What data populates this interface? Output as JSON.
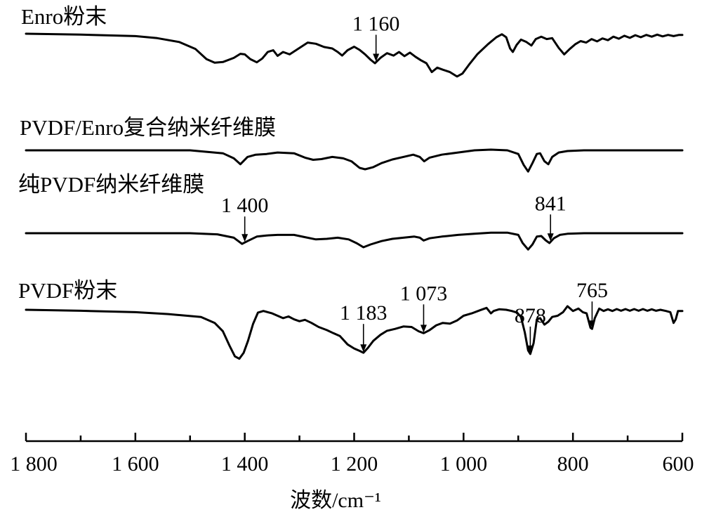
{
  "chart_data": {
    "type": "line",
    "title": "",
    "xlabel": "波数/cm⁻¹",
    "ylabel": "",
    "xlim": [
      1800,
      600
    ],
    "x_reversed": true,
    "xticks": [
      1800,
      1600,
      1400,
      1200,
      1000,
      800,
      600
    ],
    "xtick_labels": [
      "1 800",
      "1 600",
      "1 400",
      "1 200",
      "1 000",
      "800",
      "600"
    ],
    "grid": false,
    "series": [
      {
        "name": "Enro粉末",
        "points": [
          [
            1800,
            0.0
          ],
          [
            1700,
            0.03
          ],
          [
            1600,
            0.08
          ],
          [
            1560,
            0.15
          ],
          [
            1520,
            0.28
          ],
          [
            1490,
            0.52
          ],
          [
            1470,
            0.86
          ],
          [
            1455,
            0.98
          ],
          [
            1440,
            0.96
          ],
          [
            1420,
            0.82
          ],
          [
            1408,
            0.68
          ],
          [
            1400,
            0.7
          ],
          [
            1390,
            0.86
          ],
          [
            1378,
            0.97
          ],
          [
            1368,
            0.84
          ],
          [
            1358,
            0.62
          ],
          [
            1348,
            0.56
          ],
          [
            1340,
            0.75
          ],
          [
            1330,
            0.62
          ],
          [
            1318,
            0.7
          ],
          [
            1300,
            0.48
          ],
          [
            1285,
            0.3
          ],
          [
            1270,
            0.34
          ],
          [
            1255,
            0.45
          ],
          [
            1240,
            0.5
          ],
          [
            1230,
            0.62
          ],
          [
            1222,
            0.74
          ],
          [
            1212,
            0.56
          ],
          [
            1200,
            0.44
          ],
          [
            1190,
            0.55
          ],
          [
            1180,
            0.7
          ],
          [
            1170,
            0.88
          ],
          [
            1162,
            1.0
          ],
          [
            1152,
            0.82
          ],
          [
            1140,
            0.66
          ],
          [
            1128,
            0.74
          ],
          [
            1118,
            0.62
          ],
          [
            1108,
            0.76
          ],
          [
            1098,
            0.64
          ],
          [
            1088,
            0.78
          ],
          [
            1078,
            0.9
          ],
          [
            1068,
            1.0
          ],
          [
            1058,
            1.3
          ],
          [
            1048,
            1.15
          ],
          [
            1038,
            1.22
          ],
          [
            1025,
            1.3
          ],
          [
            1012,
            1.45
          ],
          [
            1002,
            1.35
          ],
          [
            990,
            1.05
          ],
          [
            975,
            0.7
          ],
          [
            955,
            0.35
          ],
          [
            940,
            0.12
          ],
          [
            930,
            0.02
          ],
          [
            922,
            0.12
          ],
          [
            915,
            0.5
          ],
          [
            910,
            0.62
          ],
          [
            903,
            0.38
          ],
          [
            895,
            0.2
          ],
          [
            885,
            0.28
          ],
          [
            876,
            0.4
          ],
          [
            868,
            0.18
          ],
          [
            858,
            0.1
          ],
          [
            848,
            0.18
          ],
          [
            838,
            0.15
          ],
          [
            826,
            0.48
          ],
          [
            816,
            0.7
          ],
          [
            806,
            0.52
          ],
          [
            796,
            0.36
          ],
          [
            786,
            0.25
          ],
          [
            776,
            0.3
          ],
          [
            766,
            0.18
          ],
          [
            756,
            0.26
          ],
          [
            746,
            0.16
          ],
          [
            736,
            0.22
          ],
          [
            726,
            0.1
          ],
          [
            716,
            0.17
          ],
          [
            706,
            0.07
          ],
          [
            696,
            0.14
          ],
          [
            686,
            0.05
          ],
          [
            676,
            0.12
          ],
          [
            666,
            0.04
          ],
          [
            656,
            0.1
          ],
          [
            646,
            0.03
          ],
          [
            636,
            0.09
          ],
          [
            626,
            0.04
          ],
          [
            616,
            0.08
          ],
          [
            606,
            0.04
          ],
          [
            600,
            0.04
          ]
        ]
      },
      {
        "name": "PVDF/Enro复合纳米纤维膜",
        "points": [
          [
            1800,
            0.0
          ],
          [
            1500,
            0.0
          ],
          [
            1440,
            0.08
          ],
          [
            1420,
            0.22
          ],
          [
            1408,
            0.38
          ],
          [
            1395,
            0.18
          ],
          [
            1380,
            0.12
          ],
          [
            1360,
            0.1
          ],
          [
            1340,
            0.06
          ],
          [
            1310,
            0.08
          ],
          [
            1290,
            0.2
          ],
          [
            1275,
            0.26
          ],
          [
            1260,
            0.24
          ],
          [
            1240,
            0.18
          ],
          [
            1220,
            0.22
          ],
          [
            1205,
            0.3
          ],
          [
            1190,
            0.48
          ],
          [
            1180,
            0.52
          ],
          [
            1165,
            0.46
          ],
          [
            1150,
            0.35
          ],
          [
            1130,
            0.25
          ],
          [
            1110,
            0.18
          ],
          [
            1092,
            0.12
          ],
          [
            1080,
            0.18
          ],
          [
            1072,
            0.3
          ],
          [
            1062,
            0.2
          ],
          [
            1040,
            0.12
          ],
          [
            1010,
            0.06
          ],
          [
            980,
            0.0
          ],
          [
            950,
            -0.02
          ],
          [
            920,
            0.0
          ],
          [
            900,
            0.1
          ],
          [
            890,
            0.4
          ],
          [
            882,
            0.58
          ],
          [
            874,
            0.35
          ],
          [
            866,
            0.1
          ],
          [
            860,
            0.08
          ],
          [
            852,
            0.3
          ],
          [
            845,
            0.38
          ],
          [
            838,
            0.18
          ],
          [
            826,
            0.06
          ],
          [
            810,
            0.02
          ],
          [
            780,
            0.0
          ],
          [
            700,
            0.0
          ],
          [
            600,
            0.0
          ]
        ]
      },
      {
        "name": "纯PVDF纳米纤维膜",
        "points": [
          [
            1800,
            0.0
          ],
          [
            1500,
            0.0
          ],
          [
            1450,
            0.04
          ],
          [
            1420,
            0.16
          ],
          [
            1405,
            0.38
          ],
          [
            1395,
            0.28
          ],
          [
            1378,
            0.12
          ],
          [
            1360,
            0.08
          ],
          [
            1340,
            0.06
          ],
          [
            1310,
            0.06
          ],
          [
            1290,
            0.14
          ],
          [
            1270,
            0.22
          ],
          [
            1250,
            0.2
          ],
          [
            1230,
            0.16
          ],
          [
            1210,
            0.22
          ],
          [
            1195,
            0.36
          ],
          [
            1183,
            0.5
          ],
          [
            1170,
            0.4
          ],
          [
            1150,
            0.28
          ],
          [
            1130,
            0.2
          ],
          [
            1110,
            0.16
          ],
          [
            1090,
            0.12
          ],
          [
            1080,
            0.16
          ],
          [
            1073,
            0.26
          ],
          [
            1062,
            0.18
          ],
          [
            1040,
            0.12
          ],
          [
            1010,
            0.06
          ],
          [
            980,
            0.02
          ],
          [
            950,
            -0.02
          ],
          [
            920,
            -0.02
          ],
          [
            900,
            0.06
          ],
          [
            892,
            0.35
          ],
          [
            882,
            0.58
          ],
          [
            874,
            0.4
          ],
          [
            866,
            0.12
          ],
          [
            858,
            0.1
          ],
          [
            850,
            0.25
          ],
          [
            843,
            0.35
          ],
          [
            835,
            0.18
          ],
          [
            824,
            0.06
          ],
          [
            810,
            0.02
          ],
          [
            780,
            0.0
          ],
          [
            700,
            0.0
          ],
          [
            600,
            0.0
          ]
        ]
      },
      {
        "name": "PVDF粉末",
        "points": [
          [
            1800,
            0.0
          ],
          [
            1700,
            0.04
          ],
          [
            1600,
            0.1
          ],
          [
            1540,
            0.18
          ],
          [
            1480,
            0.3
          ],
          [
            1455,
            0.55
          ],
          [
            1440,
            0.9
          ],
          [
            1428,
            1.5
          ],
          [
            1418,
            1.95
          ],
          [
            1410,
            2.05
          ],
          [
            1402,
            1.8
          ],
          [
            1394,
            1.3
          ],
          [
            1385,
            0.6
          ],
          [
            1376,
            0.12
          ],
          [
            1366,
            0.05
          ],
          [
            1350,
            0.15
          ],
          [
            1330,
            0.35
          ],
          [
            1320,
            0.28
          ],
          [
            1310,
            0.4
          ],
          [
            1300,
            0.48
          ],
          [
            1290,
            0.42
          ],
          [
            1278,
            0.55
          ],
          [
            1265,
            0.72
          ],
          [
            1250,
            0.85
          ],
          [
            1238,
            0.98
          ],
          [
            1226,
            1.1
          ],
          [
            1212,
            1.45
          ],
          [
            1200,
            1.62
          ],
          [
            1190,
            1.72
          ],
          [
            1183,
            1.8
          ],
          [
            1175,
            1.6
          ],
          [
            1165,
            1.3
          ],
          [
            1152,
            1.05
          ],
          [
            1140,
            0.88
          ],
          [
            1125,
            0.8
          ],
          [
            1110,
            0.7
          ],
          [
            1095,
            0.72
          ],
          [
            1082,
            0.9
          ],
          [
            1073,
            0.98
          ],
          [
            1062,
            0.85
          ],
          [
            1050,
            0.65
          ],
          [
            1038,
            0.55
          ],
          [
            1025,
            0.58
          ],
          [
            1012,
            0.45
          ],
          [
            1000,
            0.25
          ],
          [
            985,
            0.15
          ],
          [
            970,
            0.02
          ],
          [
            958,
            -0.08
          ],
          [
            950,
            0.15
          ],
          [
            945,
            0.05
          ],
          [
            935,
            -0.02
          ],
          [
            922,
            0.0
          ],
          [
            912,
            0.05
          ],
          [
            902,
            0.12
          ],
          [
            895,
            0.3
          ],
          [
            888,
            0.95
          ],
          [
            882,
            1.7
          ],
          [
            878,
            1.85
          ],
          [
            872,
            1.4
          ],
          [
            866,
            0.4
          ],
          [
            860,
            0.35
          ],
          [
            852,
            0.62
          ],
          [
            845,
            0.5
          ],
          [
            838,
            0.3
          ],
          [
            828,
            0.25
          ],
          [
            818,
            0.1
          ],
          [
            810,
            -0.15
          ],
          [
            800,
            0.05
          ],
          [
            790,
            -0.05
          ],
          [
            782,
            0.1
          ],
          [
            775,
            0.15
          ],
          [
            768,
            0.75
          ],
          [
            765,
            0.8
          ],
          [
            760,
            0.35
          ],
          [
            752,
            -0.05
          ],
          [
            744,
            0.05
          ],
          [
            736,
            -0.02
          ],
          [
            728,
            0.05
          ],
          [
            720,
            -0.03
          ],
          [
            712,
            0.04
          ],
          [
            704,
            -0.03
          ],
          [
            696,
            0.04
          ],
          [
            688,
            -0.03
          ],
          [
            680,
            0.04
          ],
          [
            672,
            -0.03
          ],
          [
            664,
            0.04
          ],
          [
            656,
            -0.02
          ],
          [
            648,
            0.04
          ],
          [
            640,
            0.0
          ],
          [
            630,
            0.05
          ],
          [
            622,
            0.1
          ],
          [
            616,
            0.55
          ],
          [
            612,
            0.4
          ],
          [
            608,
            0.05
          ],
          [
            600,
            0.05
          ]
        ]
      }
    ],
    "annotations": [
      {
        "series": 0,
        "x": 1160,
        "text": "1 160"
      },
      {
        "series": 2,
        "x": 1400,
        "text": "1 400"
      },
      {
        "series": 2,
        "x": 841,
        "text": "841"
      },
      {
        "series": 3,
        "x": 1183,
        "text": "1 183"
      },
      {
        "series": 3,
        "x": 1073,
        "text": "1 073"
      },
      {
        "series": 3,
        "x": 878,
        "text": "878"
      },
      {
        "series": 3,
        "x": 765,
        "text": "765"
      }
    ]
  }
}
